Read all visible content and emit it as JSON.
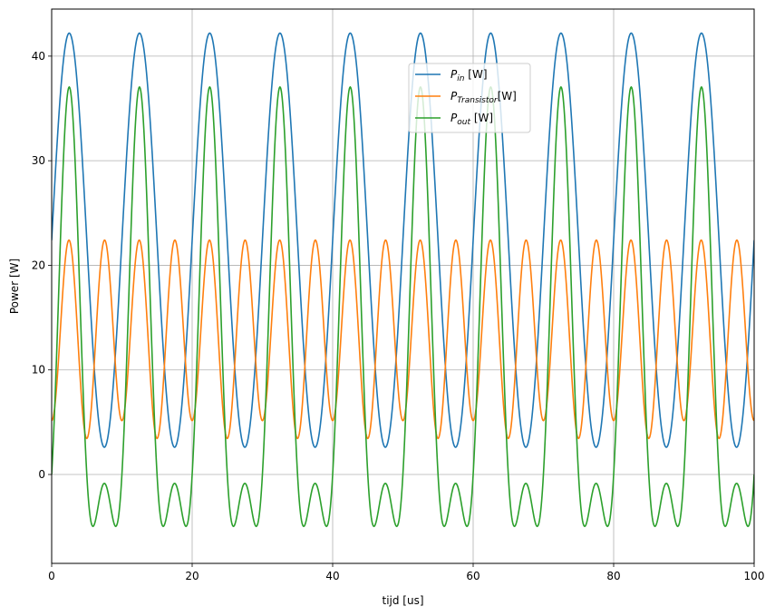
{
  "chart_data": {
    "type": "line",
    "title": "",
    "xlabel": "tijd [us]",
    "ylabel": "Power [W]",
    "xlim": [
      0,
      100
    ],
    "ylim": [
      -8.5,
      44.5
    ],
    "xticks": [
      0,
      20,
      40,
      60,
      80,
      100
    ],
    "yticks": [
      0,
      10,
      20,
      30,
      40
    ],
    "grid": true,
    "legend_position": "upper center-right",
    "period_us": 10,
    "series": [
      {
        "name": "P_in [W]",
        "legend": {
          "base": "P",
          "sub": "in",
          "suffix": " [W]"
        },
        "color": "#1f77b4",
        "model": "sin2",
        "params": {
          "dc": 22.4,
          "amplitude": 19.8,
          "omega": 0.6283185,
          "phase": 0.0
        }
      },
      {
        "name": "P_Transistor[W]",
        "legend": {
          "base": "P",
          "sub": "Transistor",
          "suffix": "[W]"
        },
        "color": "#ff7f0e",
        "model": "sin4",
        "params": {
          "dc": 13.35,
          "a1": 0.85,
          "a2": -9.05,
          "omega": 0.6283185,
          "phase1": 1.5707963,
          "phase2": 1.5707963
        }
      },
      {
        "name": "P_out [W]",
        "legend": {
          "base": "P",
          "sub": "out",
          "suffix": " [W]"
        },
        "color": "#2ca02c",
        "model": "sin2_sin4",
        "params": {
          "dc": 9.05,
          "a1": 18.95,
          "a2": 9.05,
          "omega": 0.6283185,
          "phase": 0.0
        }
      }
    ]
  }
}
